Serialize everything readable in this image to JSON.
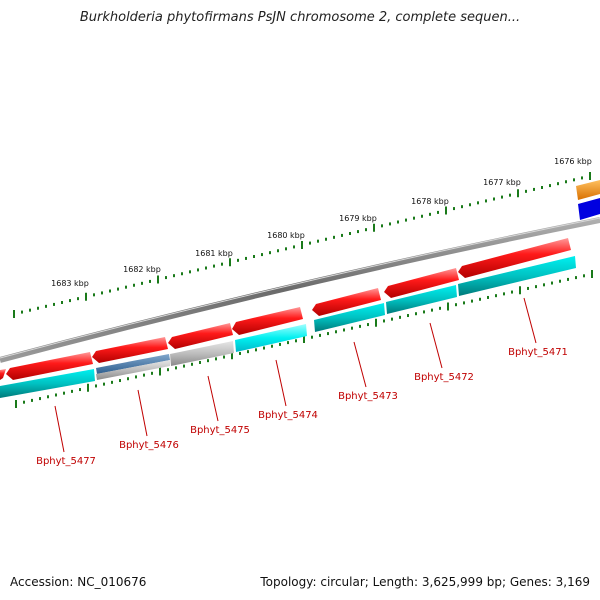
{
  "title": "Burkholderia phytofirmans PsJN chromosome 2, complete sequen...",
  "footer": {
    "accession": "Accession: NC_010676",
    "summary": "Topology: circular; Length: 3,625,999 bp; Genes: 3,169"
  },
  "ticks": [
    {
      "label": "1676 kbp"
    },
    {
      "label": "1677 kbp"
    },
    {
      "label": "1678 kbp"
    },
    {
      "label": "1679 kbp"
    },
    {
      "label": "1680 kbp"
    },
    {
      "label": "1681 kbp"
    },
    {
      "label": "1682 kbp"
    },
    {
      "label": "1683 kbp"
    }
  ],
  "genes": [
    {
      "label": "Bphyt_5471"
    },
    {
      "label": "Bphyt_5472"
    },
    {
      "label": "Bphyt_5473"
    },
    {
      "label": "Bphyt_5474"
    },
    {
      "label": "Bphyt_5475"
    },
    {
      "label": "Bphyt_5476"
    },
    {
      "label": "Bphyt_5477"
    }
  ],
  "colors": {
    "cds": "#ff0000",
    "gene": "#00c8c8",
    "ticks": "#1a7a1a",
    "backbone": "#808080",
    "gene_label": "#c00000"
  }
}
